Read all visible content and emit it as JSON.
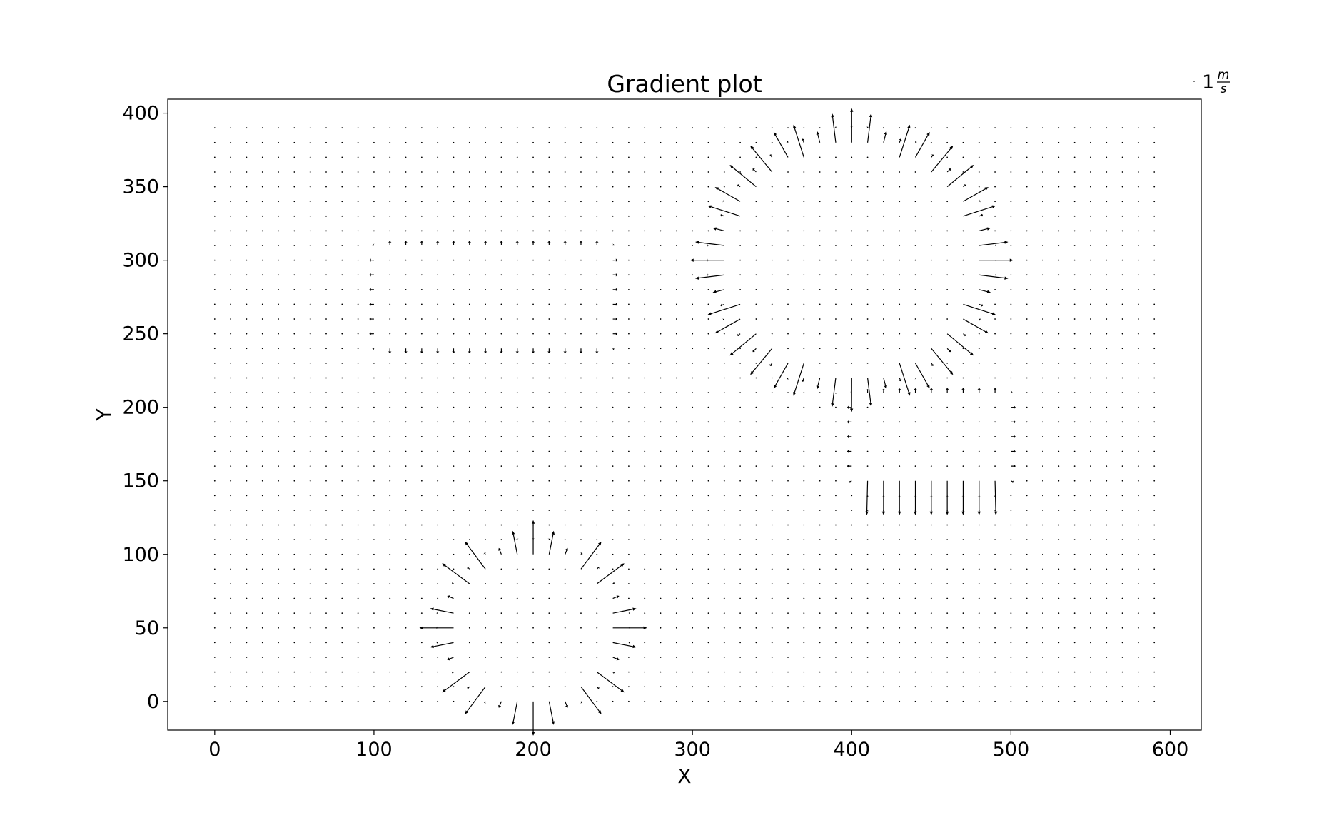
{
  "chart_data": {
    "type": "quiver",
    "title": "Gradient plot",
    "xlabel": "X",
    "ylabel": "Y",
    "xlim": [
      -29.5,
      619.5
    ],
    "ylim": [
      -19.5,
      409.5
    ],
    "xticks": [
      0,
      100,
      200,
      300,
      400,
      500,
      600
    ],
    "yticks": [
      0,
      50,
      100,
      150,
      200,
      250,
      300,
      350,
      400
    ],
    "grid": {
      "x": {
        "start": 0,
        "stop": 590,
        "step": 10
      },
      "y": {
        "start": 0,
        "stop": 390,
        "step": 10
      }
    },
    "field": "negative gradient of a potential with high-value obstacles",
    "obstacles": [
      {
        "shape": "circle",
        "center": [
          200,
          50
        ],
        "radius": 45
      },
      {
        "shape": "rectangle",
        "x": [
          110,
          240
        ],
        "y": [
          250,
          300
        ]
      },
      {
        "shape": "circle",
        "center": [
          400,
          300
        ],
        "radius": 75
      },
      {
        "shape": "rectangle",
        "x": [
          410,
          490
        ],
        "y": [
          155,
          200
        ]
      }
    ],
    "quiverkey": {
      "value": 1,
      "label_main": "1",
      "label_numerator": "m",
      "label_denominator": "s",
      "position": "top-right, outside axes"
    },
    "color": "#000000"
  }
}
